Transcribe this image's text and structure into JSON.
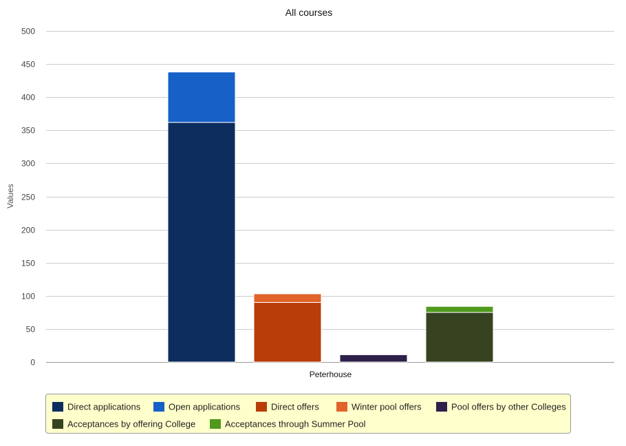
{
  "chart_data": {
    "type": "bar",
    "stacked": true,
    "title": "All courses",
    "xlabel": "",
    "ylabel": "Values",
    "ylim": [
      0,
      500
    ],
    "yticks": [
      0,
      50,
      100,
      150,
      200,
      250,
      300,
      350,
      400,
      450,
      500
    ],
    "categories": [
      "Peterhouse"
    ],
    "grid": true,
    "legend_position": "bottom",
    "stacks": [
      {
        "segments": [
          {
            "series": "Direct applications",
            "value": 362,
            "color": "#0c2d5e"
          },
          {
            "series": "Open applications",
            "value": 76,
            "color": "#1660c8"
          }
        ]
      },
      {
        "segments": [
          {
            "series": "Direct offers",
            "value": 90,
            "color": "#b93d07"
          },
          {
            "series": "Winter pool offers",
            "value": 13,
            "color": "#e0632a"
          }
        ]
      },
      {
        "segments": [
          {
            "series": "Pool offers by other Colleges",
            "value": 11,
            "color": "#2e2149"
          }
        ]
      },
      {
        "segments": [
          {
            "series": "Acceptances by offering College",
            "value": 75,
            "color": "#374220"
          },
          {
            "series": "Acceptances through Summer Pool",
            "value": 9,
            "color": "#4f9a1d"
          }
        ]
      }
    ],
    "legend": [
      {
        "label": "Direct applications",
        "color": "#0c2d5e"
      },
      {
        "label": "Open applications",
        "color": "#1660c8"
      },
      {
        "label": "Direct offers",
        "color": "#b93d07"
      },
      {
        "label": "Winter pool offers",
        "color": "#e0632a"
      },
      {
        "label": "Pool offers by other Colleges",
        "color": "#2e2149"
      },
      {
        "label": "Acceptances by offering College",
        "color": "#374220"
      },
      {
        "label": "Acceptances through Summer Pool",
        "color": "#4f9a1d"
      }
    ]
  }
}
